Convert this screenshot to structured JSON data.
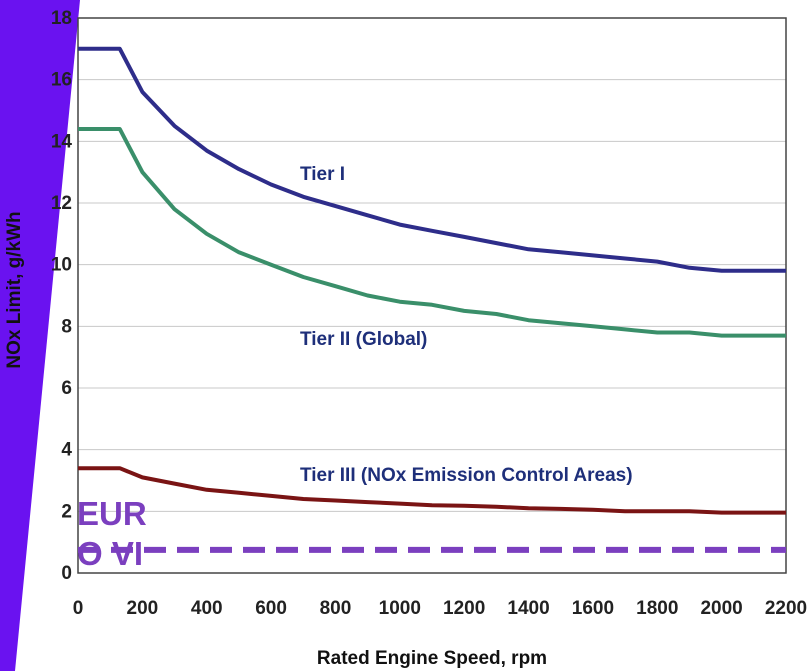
{
  "chart_data": {
    "type": "line",
    "xlabel": "Rated Engine Speed, rpm",
    "ylabel": "NOx Limit, g/kWh",
    "xlim": [
      0,
      2200
    ],
    "ylim": [
      0,
      18
    ],
    "x_ticks": [
      "0",
      "200",
      "400",
      "600",
      "800",
      "1000",
      "1200",
      "1400",
      "1600",
      "1800",
      "2000",
      "2200"
    ],
    "y_ticks": [
      "0",
      "2",
      "4",
      "6",
      "8",
      "10",
      "12",
      "14",
      "16",
      "18"
    ],
    "grid": "horizontal",
    "series": [
      {
        "name": "Tier I",
        "color": "#2e2d8a",
        "x": [
          0,
          130,
          200,
          300,
          400,
          500,
          600,
          700,
          800,
          900,
          1000,
          1100,
          1200,
          1300,
          1400,
          1500,
          1600,
          1700,
          1800,
          1900,
          2000,
          2200
        ],
        "y": [
          17.0,
          17.0,
          15.6,
          14.5,
          13.7,
          13.1,
          12.6,
          12.2,
          11.9,
          11.6,
          11.3,
          11.1,
          10.9,
          10.7,
          10.5,
          10.4,
          10.3,
          10.2,
          10.1,
          9.9,
          9.8,
          9.8
        ]
      },
      {
        "name": "Tier II (Global)",
        "color": "#3a8f6a",
        "x": [
          0,
          130,
          200,
          300,
          400,
          500,
          600,
          700,
          800,
          900,
          1000,
          1100,
          1200,
          1300,
          1400,
          1500,
          1600,
          1700,
          1800,
          1900,
          2000,
          2200
        ],
        "y": [
          14.4,
          14.4,
          13.0,
          11.8,
          11.0,
          10.4,
          10.0,
          9.6,
          9.3,
          9.0,
          8.8,
          8.7,
          8.5,
          8.4,
          8.2,
          8.1,
          8.0,
          7.9,
          7.8,
          7.8,
          7.7,
          7.7
        ]
      },
      {
        "name": "Tier III (NOx Emission Control Areas)",
        "color": "#7a1414",
        "x": [
          0,
          130,
          200,
          300,
          400,
          500,
          600,
          700,
          800,
          900,
          1000,
          1100,
          1200,
          1300,
          1400,
          1500,
          1600,
          1700,
          1800,
          1900,
          2000,
          2200
        ],
        "y": [
          3.4,
          3.4,
          3.1,
          2.9,
          2.7,
          2.6,
          2.5,
          2.4,
          2.35,
          2.3,
          2.25,
          2.2,
          2.18,
          2.15,
          2.1,
          2.08,
          2.05,
          2.0,
          2.0,
          2.0,
          1.96,
          1.96
        ]
      }
    ],
    "reference_line": {
      "label": "EURO VI",
      "label_lines": [
        "EUR",
        "O VI"
      ],
      "y": 0.75,
      "color": "#7b3fbf",
      "style": "dashed"
    },
    "side_band_color": "#6a12f0"
  }
}
